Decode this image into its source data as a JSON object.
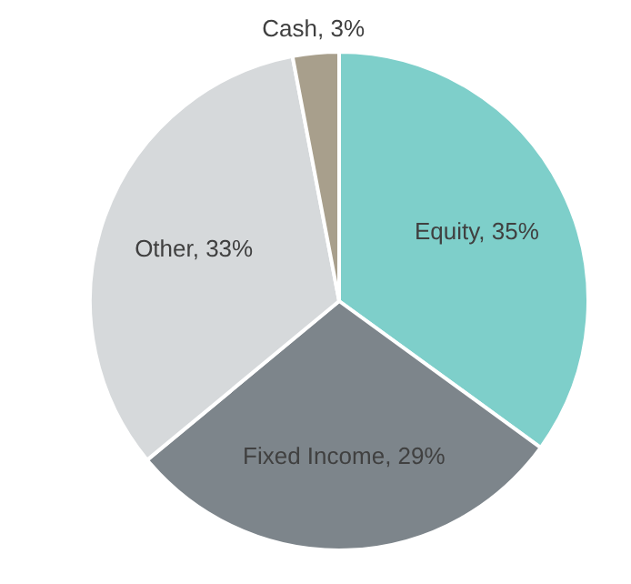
{
  "chart_data": {
    "type": "pie",
    "categories": [
      "Equity",
      "Fixed Income",
      "Other",
      "Cash"
    ],
    "values": [
      35,
      29,
      33,
      3
    ],
    "value_labels": [
      "35%",
      "29%",
      "33%",
      "3%"
    ],
    "colors": [
      "#7ecfca",
      "#7d858b",
      "#d6d9db",
      "#a89f8c"
    ]
  }
}
